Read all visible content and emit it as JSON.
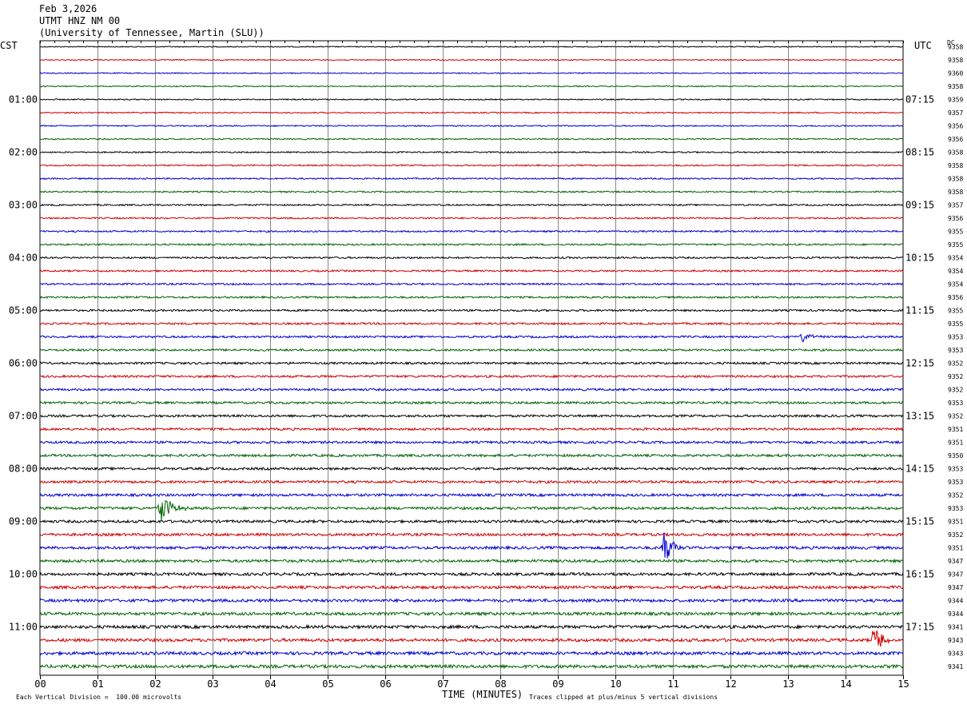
{
  "header": {
    "date": "Feb 3,2026",
    "station": "UTMT HNZ NM 00",
    "network": "(University of Tennessee, Martin (SLU))"
  },
  "chart_data": {
    "type": "line",
    "title": "",
    "left_timezone": "CST",
    "right_timezone": "UTC",
    "dc_header": "DC",
    "xlabel": "TIME (MINUTES)",
    "x_ticks": [
      "00",
      "01",
      "02",
      "03",
      "04",
      "05",
      "06",
      "07",
      "08",
      "09",
      "10",
      "11",
      "12",
      "13",
      "14",
      "15"
    ],
    "xlim": [
      0,
      15
    ],
    "left_hour_labels": [
      "01:00",
      "02:00",
      "03:00",
      "04:00",
      "05:00",
      "06:00",
      "07:00",
      "08:00",
      "09:00",
      "10:00",
      "11:00"
    ],
    "right_hour_labels": [
      "07:15",
      "08:15",
      "09:15",
      "10:15",
      "11:15",
      "12:15",
      "13:15",
      "14:15",
      "15:15",
      "16:15",
      "17:15"
    ],
    "trace_colors": [
      "#000000",
      "#d10000",
      "#0000d0",
      "#006400"
    ],
    "dc_values": [
      "9358",
      "9358",
      "9360",
      "9358",
      "9359",
      "9357",
      "9356",
      "9356",
      "9358",
      "9358",
      "9358",
      "9358",
      "9357",
      "9356",
      "9355",
      "9355",
      "9354",
      "9354",
      "9354",
      "9356",
      "9355",
      "9355",
      "9353",
      "9353",
      "9352",
      "9352",
      "9352",
      "9353",
      "9352",
      "9351",
      "9351",
      "9350",
      "9353",
      "9353",
      "9352",
      "9353",
      "9351",
      "9352",
      "9351",
      "9347",
      "9347",
      "9347",
      "9344",
      "9344",
      "9341",
      "9343",
      "9343",
      "9341"
    ],
    "events": [
      {
        "trace": 22,
        "minute": 13.25,
        "amplitude": 0.4
      },
      {
        "trace": 35,
        "minute": 2.1,
        "amplitude": 1.6
      },
      {
        "trace": 38,
        "minute": 10.85,
        "amplitude": 1.3
      },
      {
        "trace": 45,
        "minute": 14.5,
        "amplitude": 1.3
      }
    ],
    "footer_left": "Each Vertical Division =  100.00 microvolts",
    "footer_right": "Traces clipped at plus/minus 5 vertical divisions"
  }
}
